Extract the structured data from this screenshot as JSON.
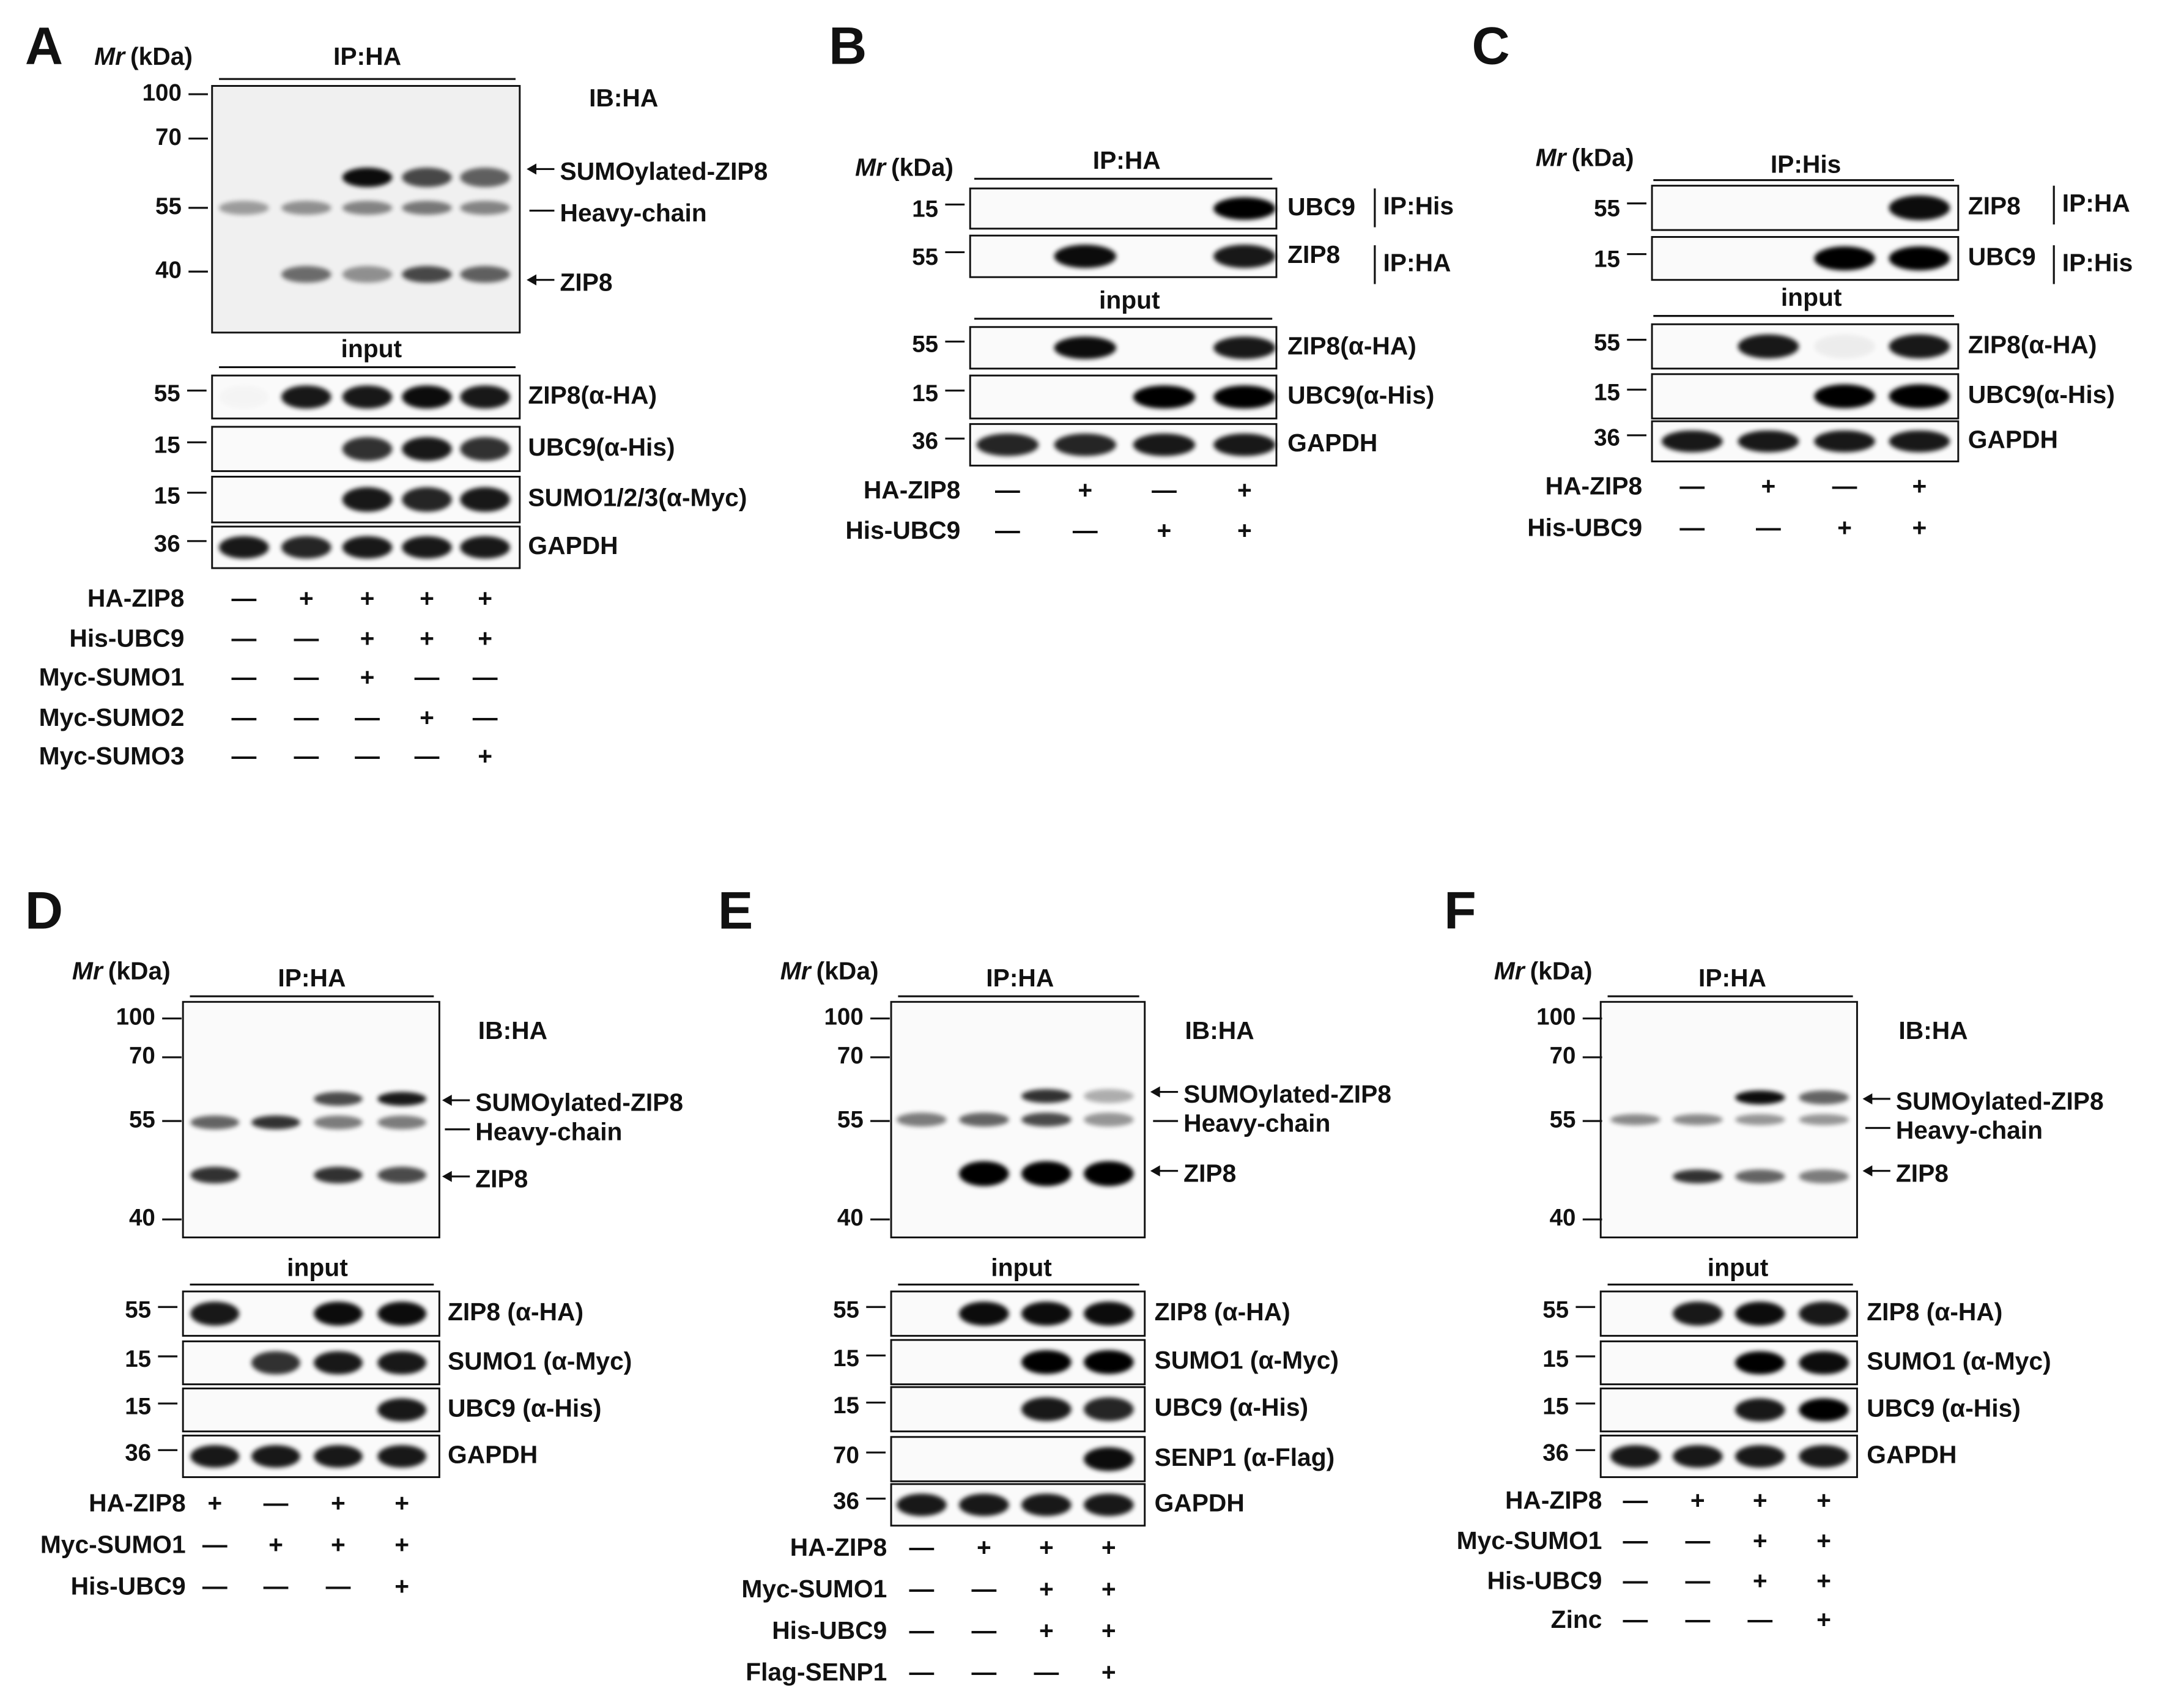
{
  "panels": [
    {
      "label": "A",
      "mr": "Mr",
      "unit": "(kDa)",
      "ip": "IP:HA",
      "ib": "IB:HA",
      "markers": [
        "100",
        "70",
        "55",
        "40"
      ],
      "bands": [
        "SUMOylated-ZIP8",
        "Heavy-chain",
        "ZIP8"
      ],
      "input": "input",
      "blots": [
        {
          "marker": "55",
          "name": "ZIP8(α-HA)"
        },
        {
          "marker": "15",
          "name": "UBC9(α-His)"
        },
        {
          "marker": "15",
          "name": "SUMO1/2/3(α-Myc)"
        },
        {
          "marker": "36",
          "name": "GAPDH"
        }
      ],
      "conditions": [
        {
          "name": "HA-ZIP8",
          "signs": [
            "—",
            "+",
            "+",
            "+",
            "+"
          ]
        },
        {
          "name": "His-UBC9",
          "signs": [
            "—",
            "—",
            "+",
            "+",
            "+"
          ]
        },
        {
          "name": "Myc-SUMO1",
          "signs": [
            "—",
            "—",
            "+",
            "—",
            "—"
          ]
        },
        {
          "name": "Myc-SUMO2",
          "signs": [
            "—",
            "—",
            "—",
            "+",
            "—"
          ]
        },
        {
          "name": "Myc-SUMO3",
          "signs": [
            "—",
            "—",
            "—",
            "—",
            "+"
          ]
        }
      ]
    },
    {
      "label": "B",
      "mr": "Mr",
      "unit": "(kDa)",
      "ip": "IP:HA",
      "ip_blots": [
        {
          "marker": "15",
          "name": "UBC9",
          "ip": "IP:His"
        },
        {
          "marker": "55",
          "name": "ZIP8",
          "ip": "IP:HA"
        }
      ],
      "input": "input",
      "blots": [
        {
          "marker": "55",
          "name": "ZIP8(α-HA)"
        },
        {
          "marker": "15",
          "name": "UBC9(α-His)"
        },
        {
          "marker": "36",
          "name": "GAPDH"
        }
      ],
      "conditions": [
        {
          "name": "HA-ZIP8",
          "signs": [
            "—",
            "+",
            "—",
            "+"
          ]
        },
        {
          "name": "His-UBC9",
          "signs": [
            "—",
            "—",
            "+",
            "+"
          ]
        }
      ]
    },
    {
      "label": "C",
      "mr": "Mr",
      "unit": "(kDa)",
      "ip": "IP:His",
      "ip_blots": [
        {
          "marker": "55",
          "name": "ZIP8",
          "ip": "IP:HA"
        },
        {
          "marker": "15",
          "name": "UBC9",
          "ip": "IP:His"
        }
      ],
      "input": "input",
      "blots": [
        {
          "marker": "55",
          "name": "ZIP8(α-HA)"
        },
        {
          "marker": "15",
          "name": "UBC9(α-His)"
        },
        {
          "marker": "36",
          "name": "GAPDH"
        }
      ],
      "conditions": [
        {
          "name": "HA-ZIP8",
          "signs": [
            "—",
            "+",
            "—",
            "+"
          ]
        },
        {
          "name": "His-UBC9",
          "signs": [
            "—",
            "—",
            "+",
            "+"
          ]
        }
      ]
    },
    {
      "label": "D",
      "mr": "Mr",
      "unit": "(kDa)",
      "ip": "IP:HA",
      "ib": "IB:HA",
      "markers": [
        "100",
        "70",
        "55",
        "40"
      ],
      "bands": [
        "SUMOylated-ZIP8",
        "Heavy-chain",
        "ZIP8"
      ],
      "input": "input",
      "blots": [
        {
          "marker": "55",
          "name": "ZIP8 (α-HA)"
        },
        {
          "marker": "15",
          "name": "SUMO1 (α-Myc)"
        },
        {
          "marker": "15",
          "name": "UBC9 (α-His)"
        },
        {
          "marker": "36",
          "name": "GAPDH"
        }
      ],
      "conditions": [
        {
          "name": "HA-ZIP8",
          "signs": [
            "+",
            "—",
            "+",
            "+"
          ]
        },
        {
          "name": "Myc-SUMO1",
          "signs": [
            "—",
            "+",
            "+",
            "+"
          ]
        },
        {
          "name": "His-UBC9",
          "signs": [
            "—",
            "—",
            "—",
            "+"
          ]
        }
      ]
    },
    {
      "label": "E",
      "mr": "Mr",
      "unit": "(kDa)",
      "ip": "IP:HA",
      "ib": "IB:HA",
      "markers": [
        "100",
        "70",
        "55",
        "40"
      ],
      "bands": [
        "SUMOylated-ZIP8",
        "Heavy-chain",
        "ZIP8"
      ],
      "input": "input",
      "blots": [
        {
          "marker": "55",
          "name": "ZIP8 (α-HA)"
        },
        {
          "marker": "15",
          "name": "SUMO1 (α-Myc)"
        },
        {
          "marker": "15",
          "name": "UBC9 (α-His)"
        },
        {
          "marker": "70",
          "name": "SENP1 (α-Flag)"
        },
        {
          "marker": "36",
          "name": "GAPDH"
        }
      ],
      "conditions": [
        {
          "name": "HA-ZIP8",
          "signs": [
            "—",
            "+",
            "+",
            "+"
          ]
        },
        {
          "name": "Myc-SUMO1",
          "signs": [
            "—",
            "—",
            "+",
            "+"
          ]
        },
        {
          "name": "His-UBC9",
          "signs": [
            "—",
            "—",
            "+",
            "+"
          ]
        },
        {
          "name": "Flag-SENP1",
          "signs": [
            "—",
            "—",
            "—",
            "+"
          ]
        }
      ]
    },
    {
      "label": "F",
      "mr": "Mr",
      "unit": "(kDa)",
      "ip": "IP:HA",
      "ib": "IB:HA",
      "markers": [
        "100",
        "70",
        "55",
        "40"
      ],
      "bands": [
        "SUMOylated-ZIP8",
        "Heavy-chain",
        "ZIP8"
      ],
      "input": "input",
      "blots": [
        {
          "marker": "55",
          "name": "ZIP8 (α-HA)"
        },
        {
          "marker": "15",
          "name": "SUMO1 (α-Myc)"
        },
        {
          "marker": "15",
          "name": "UBC9 (α-His)"
        },
        {
          "marker": "36",
          "name": "GAPDH"
        }
      ],
      "conditions": [
        {
          "name": "HA-ZIP8",
          "signs": [
            "—",
            "+",
            "+",
            "+"
          ]
        },
        {
          "name": "Myc-SUMO1",
          "signs": [
            "—",
            "—",
            "+",
            "+"
          ]
        },
        {
          "name": "His-UBC9",
          "signs": [
            "—",
            "—",
            "+",
            "+"
          ]
        },
        {
          "name": "Zinc",
          "signs": [
            "—",
            "—",
            "—",
            "+"
          ]
        }
      ]
    }
  ]
}
